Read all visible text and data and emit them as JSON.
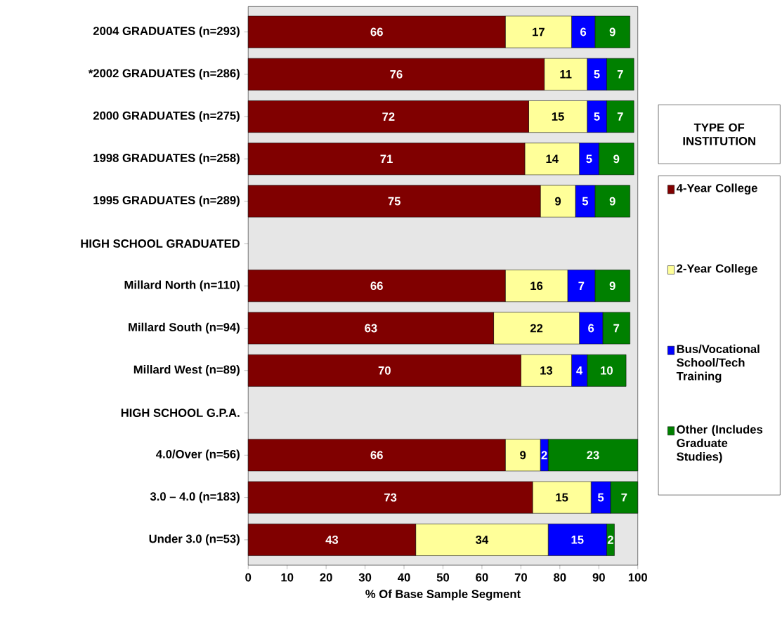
{
  "chart_data": {
    "type": "bar",
    "orientation": "horizontal",
    "stacked": true,
    "data_labels": true,
    "legend": "right",
    "legend_title": "TYPE OF INSTITUTION",
    "xlabel": "% Of Base Sample Segment",
    "categories": [
      "2004 GRADUATES (n=293)",
      "*2002 GRADUATES (n=286)",
      "2000 GRADUATES (n=275)",
      "1998 GRADUATES (n=258)",
      "1995 GRADUATES (n=289)",
      "HIGH SCHOOL GRADUATED",
      "Millard North (n=110)",
      "Millard South (n=94)",
      "Millard West (n=89)",
      "HIGH SCHOOL G.P.A.",
      "4.0/Over (n=56)",
      "3.0 – 4.0 (n=183)",
      "Under 3.0 (n=53)"
    ],
    "series": [
      {
        "name": "4-Year College",
        "color": "#800000",
        "values": [
          66,
          76,
          72,
          71,
          75,
          null,
          66,
          63,
          70,
          null,
          66,
          73,
          43
        ]
      },
      {
        "name": "2-Year College",
        "color": "#ffff99",
        "values": [
          17,
          11,
          15,
          14,
          9,
          null,
          16,
          22,
          13,
          null,
          9,
          15,
          34
        ]
      },
      {
        "name": "Bus/Vocational School/Tech Training",
        "color": "#0000ff",
        "values": [
          6,
          5,
          5,
          5,
          5,
          null,
          7,
          6,
          4,
          null,
          2,
          5,
          15
        ]
      },
      {
        "name": "Other (Includes Graduate Studies)",
        "color": "#008000",
        "values": [
          9,
          7,
          7,
          9,
          9,
          null,
          9,
          7,
          10,
          null,
          23,
          7,
          2
        ]
      }
    ],
    "xlim": [
      0,
      100
    ],
    "xticks": [
      0,
      10,
      20,
      30,
      40,
      50,
      60,
      70,
      80,
      90,
      100
    ]
  }
}
